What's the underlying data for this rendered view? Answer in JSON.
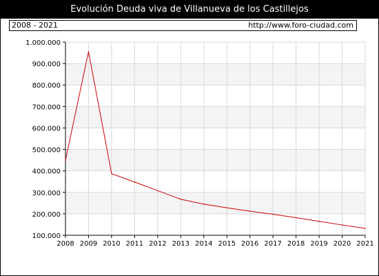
{
  "header": {
    "title": "Evolución Deuda viva de Villanueva de los Castillejos",
    "period": "2008 - 2021",
    "site": "http://www.foro-ciudad.com"
  },
  "colors": {
    "line": "#cc0000",
    "band": "#f4f4f4",
    "grid": "#d8d8d8"
  },
  "chart_data": {
    "type": "line",
    "title": "Evolución Deuda viva de Villanueva de los Castillejos",
    "xlabel": "",
    "ylabel": "",
    "ylim": [
      100000,
      1000000
    ],
    "grid": true,
    "x": [
      "2008",
      "2009",
      "2010",
      "2011",
      "2012",
      "2013",
      "2014",
      "2015",
      "2016",
      "2017",
      "2018",
      "2019",
      "2020",
      "2021"
    ],
    "series": [
      {
        "values": [
          450000,
          955000,
          387000,
          348000,
          308000,
          268000,
          245000,
          228000,
          212000,
          198000,
          182000,
          165000,
          148000,
          132000
        ]
      }
    ],
    "y_tick_labels": [
      "100.000",
      "200.000",
      "300.000",
      "400.000",
      "500.000",
      "600.000",
      "700.000",
      "800.000",
      "900.000",
      "1.000.000"
    ],
    "y_ticks": [
      100000,
      200000,
      300000,
      400000,
      500000,
      600000,
      700000,
      800000,
      900000,
      1000000
    ]
  }
}
